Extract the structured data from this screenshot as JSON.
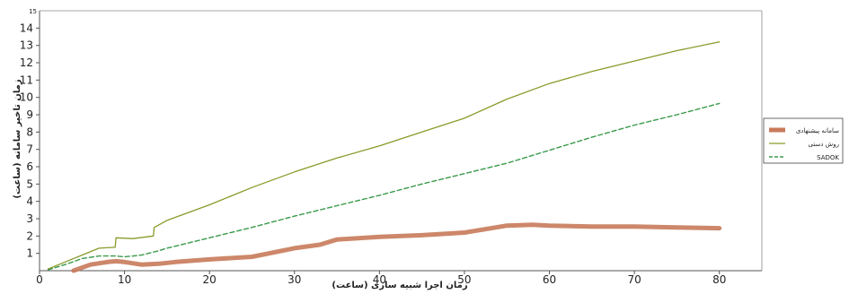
{
  "chart_data": {
    "type": "line",
    "xlabel": "زمان اجرا شبیه سازی (ساعت)",
    "ylabel": "زمان تاخیر سامانه (ساعت)",
    "xlim": [
      0,
      85
    ],
    "ylim": [
      0,
      15
    ],
    "x_ticks": [
      0,
      10,
      20,
      30,
      40,
      50,
      60,
      70,
      80
    ],
    "y_ticks": [
      1,
      2,
      3,
      4,
      5,
      6,
      7,
      8,
      9,
      10,
      11,
      12,
      13,
      14
    ],
    "y_top_label": "15",
    "grid": false,
    "legend_position": "right",
    "series": [
      {
        "name": "سامانه پیشنهادی",
        "color": "#c87a5a",
        "style": "thick",
        "x": [
          4,
          6,
          8,
          9,
          10,
          12,
          14,
          16,
          20,
          25,
          30,
          33,
          35,
          40,
          45,
          50,
          55,
          58,
          60,
          65,
          70,
          75,
          80
        ],
        "y": [
          0.0,
          0.35,
          0.5,
          0.55,
          0.5,
          0.35,
          0.4,
          0.5,
          0.65,
          0.8,
          1.3,
          1.5,
          1.8,
          1.95,
          2.05,
          2.2,
          2.6,
          2.65,
          2.6,
          2.55,
          2.55,
          2.5,
          2.45
        ]
      },
      {
        "name": "روش دستی",
        "color": "#8a9a2a",
        "style": "solid",
        "x": [
          1,
          3,
          5,
          7,
          8.9,
          9,
          11,
          13.4,
          13.5,
          15,
          20,
          25,
          30,
          35,
          40,
          45,
          50,
          55,
          60,
          65,
          70,
          75,
          80
        ],
        "y": [
          0.1,
          0.5,
          0.9,
          1.3,
          1.35,
          1.9,
          1.85,
          2.0,
          2.5,
          2.9,
          3.8,
          4.8,
          5.7,
          6.5,
          7.2,
          8.0,
          8.8,
          9.9,
          10.8,
          11.5,
          12.1,
          12.7,
          13.2
        ]
      },
      {
        "name": "SADOK",
        "color": "#3a9a4a",
        "style": "dashed",
        "x": [
          1,
          3,
          5,
          7,
          9,
          10,
          12,
          14,
          15,
          20,
          25,
          30,
          35,
          40,
          45,
          50,
          55,
          60,
          65,
          70,
          75,
          80
        ],
        "y": [
          0.05,
          0.35,
          0.7,
          0.85,
          0.85,
          0.8,
          0.9,
          1.15,
          1.3,
          1.9,
          2.5,
          3.15,
          3.75,
          4.35,
          5.0,
          5.6,
          6.2,
          6.95,
          7.7,
          8.4,
          9.0,
          9.65
        ]
      }
    ]
  }
}
